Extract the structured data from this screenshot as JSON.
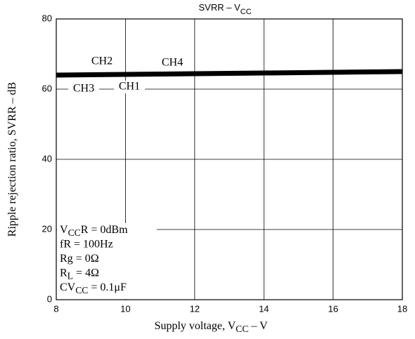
{
  "chart_data": {
    "type": "line",
    "title": [
      {
        "text": "SVRR – V"
      },
      {
        "text": "CC",
        "sub": true
      }
    ],
    "x_label": [
      {
        "text": "Supply voltage, V"
      },
      {
        "text": "CC",
        "sub": true
      },
      {
        "text": " – V"
      }
    ],
    "y_label": [
      {
        "text": "Ripple rejection ratio, SVRR – dB"
      }
    ],
    "x": [
      8,
      10,
      12,
      14,
      16,
      18
    ],
    "series": [
      {
        "name": "CH2",
        "color": "#000000",
        "values": [
          64.4,
          64.6,
          64.8,
          65.0,
          65.2,
          65.4
        ]
      },
      {
        "name": "CH4",
        "color": "#000000",
        "values": [
          64.2,
          64.4,
          64.6,
          64.8,
          65.0,
          65.2
        ]
      },
      {
        "name": "CH3",
        "color": "#000000",
        "values": [
          63.6,
          63.8,
          64.0,
          64.2,
          64.4,
          64.6
        ]
      },
      {
        "name": "CH1",
        "color": "#000000",
        "values": [
          63.8,
          64.0,
          64.2,
          64.4,
          64.6,
          64.8
        ]
      }
    ],
    "xlim": [
      8,
      18
    ],
    "xticks": [
      8,
      10,
      12,
      14,
      16,
      18
    ],
    "ylim": [
      0,
      80
    ],
    "yticks": [
      0,
      20,
      40,
      60,
      80
    ],
    "grid": true,
    "annotations": [
      [
        {
          "text": "V"
        },
        {
          "text": "CC",
          "sub": true
        },
        {
          "text": "R = 0dBm"
        }
      ],
      [
        {
          "text": "fR = 100Hz"
        }
      ],
      [
        {
          "text": "Rg = 0Ω"
        }
      ],
      [
        {
          "text": "R"
        },
        {
          "text": "L",
          "sub": true
        },
        {
          "text": " = 4Ω"
        }
      ],
      [
        {
          "text": "CV"
        },
        {
          "text": "CC",
          "sub": true
        },
        {
          "text": " = 0.1μF"
        }
      ]
    ]
  }
}
